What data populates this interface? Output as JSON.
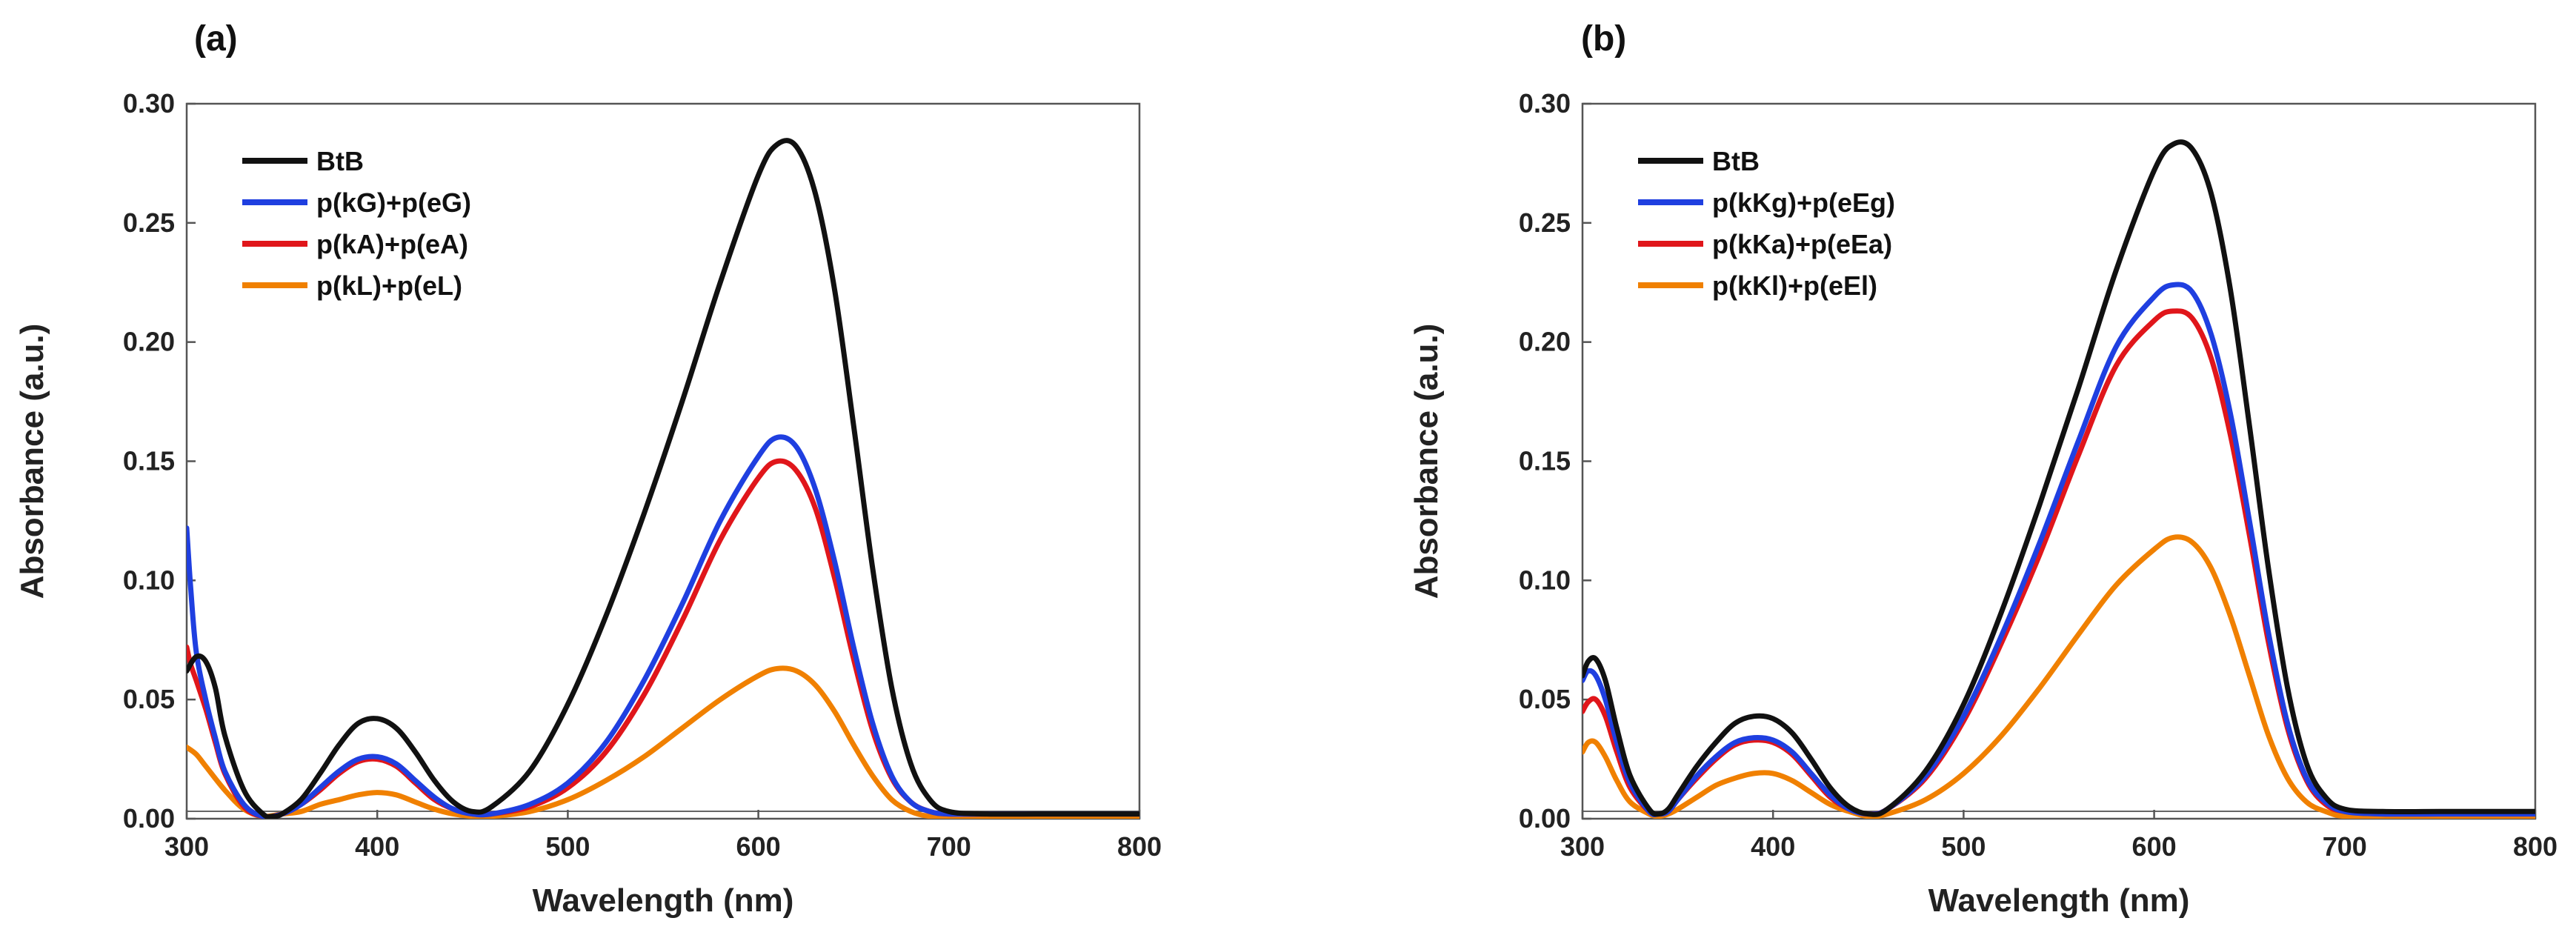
{
  "chart_data": [
    {
      "type": "line",
      "panel_label": "(a)",
      "xlabel": "Wavelength (nm)",
      "ylabel": "Absorbance (a.u.)",
      "xlim": [
        300,
        800
      ],
      "ylim": [
        0,
        0.3
      ],
      "x_ticks": [
        300,
        400,
        500,
        600,
        700,
        800
      ],
      "y_ticks": [
        "0.00",
        "0.05",
        "0.10",
        "0.15",
        "0.20",
        "0.25",
        "0.30"
      ],
      "grid": false,
      "legend_position": "top-left",
      "series": [
        {
          "name": "BtB",
          "color": "#111111",
          "x": [
            300,
            305,
            310,
            315,
            320,
            330,
            340,
            345,
            350,
            360,
            370,
            380,
            390,
            400,
            410,
            420,
            430,
            440,
            450,
            460,
            480,
            500,
            520,
            540,
            560,
            580,
            600,
            610,
            620,
            630,
            640,
            650,
            660,
            670,
            680,
            690,
            700,
            720,
            750,
            800
          ],
          "values": [
            0.062,
            0.068,
            0.066,
            0.055,
            0.035,
            0.012,
            0.002,
            0.001,
            0.002,
            0.008,
            0.019,
            0.031,
            0.04,
            0.042,
            0.038,
            0.028,
            0.016,
            0.007,
            0.003,
            0.005,
            0.02,
            0.048,
            0.085,
            0.128,
            0.175,
            0.225,
            0.27,
            0.283,
            0.282,
            0.262,
            0.222,
            0.165,
            0.105,
            0.055,
            0.023,
            0.008,
            0.003,
            0.002,
            0.002,
            0.002
          ]
        },
        {
          "name": "p(kG)+p(eG)",
          "color": "#1f3fe0",
          "x": [
            300,
            302,
            305,
            310,
            315,
            320,
            330,
            340,
            350,
            360,
            370,
            380,
            390,
            400,
            410,
            420,
            430,
            440,
            450,
            460,
            480,
            500,
            520,
            540,
            560,
            580,
            600,
            610,
            620,
            630,
            640,
            650,
            660,
            670,
            680,
            690,
            700,
            720,
            750,
            800
          ],
          "values": [
            0.122,
            0.098,
            0.07,
            0.05,
            0.034,
            0.02,
            0.006,
            0.001,
            0.002,
            0.006,
            0.013,
            0.02,
            0.025,
            0.026,
            0.023,
            0.016,
            0.009,
            0.004,
            0.002,
            0.002,
            0.006,
            0.015,
            0.032,
            0.058,
            0.09,
            0.125,
            0.152,
            0.16,
            0.156,
            0.138,
            0.108,
            0.072,
            0.04,
            0.018,
            0.007,
            0.003,
            0.002,
            0.002,
            0.002,
            0.002
          ]
        },
        {
          "name": "p(kA)+p(eA)",
          "color": "#e0161b",
          "x": [
            300,
            302,
            305,
            310,
            315,
            320,
            330,
            340,
            350,
            360,
            370,
            380,
            390,
            400,
            410,
            420,
            430,
            440,
            450,
            460,
            480,
            500,
            520,
            540,
            560,
            580,
            600,
            610,
            620,
            630,
            640,
            650,
            660,
            670,
            680,
            690,
            700,
            720,
            750,
            800
          ],
          "values": [
            0.072,
            0.065,
            0.058,
            0.046,
            0.032,
            0.019,
            0.005,
            0.001,
            0.002,
            0.006,
            0.012,
            0.019,
            0.024,
            0.025,
            0.022,
            0.015,
            0.008,
            0.004,
            0.002,
            0.002,
            0.005,
            0.013,
            0.028,
            0.052,
            0.083,
            0.117,
            0.143,
            0.15,
            0.146,
            0.13,
            0.101,
            0.067,
            0.037,
            0.017,
            0.007,
            0.003,
            0.002,
            0.002,
            0.002,
            0.002
          ]
        },
        {
          "name": "p(kL)+p(eL)",
          "color": "#f08000",
          "x": [
            300,
            305,
            310,
            320,
            330,
            340,
            350,
            360,
            370,
            380,
            390,
            400,
            410,
            420,
            430,
            440,
            450,
            460,
            480,
            500,
            520,
            540,
            560,
            580,
            600,
            610,
            620,
            630,
            640,
            650,
            660,
            670,
            680,
            690,
            700,
            720,
            750,
            800
          ],
          "values": [
            0.03,
            0.027,
            0.022,
            0.012,
            0.004,
            0.001,
            0.002,
            0.003,
            0.006,
            0.008,
            0.01,
            0.011,
            0.01,
            0.007,
            0.004,
            0.002,
            0.001,
            0.001,
            0.003,
            0.008,
            0.016,
            0.026,
            0.038,
            0.05,
            0.06,
            0.063,
            0.062,
            0.056,
            0.045,
            0.031,
            0.018,
            0.008,
            0.003,
            0.001,
            0.001,
            0.001,
            0.001,
            0.001
          ]
        }
      ]
    },
    {
      "type": "line",
      "panel_label": "(b)",
      "xlabel": "Wavelength (nm)",
      "ylabel": "Absorbance (a.u.)",
      "xlim": [
        300,
        800
      ],
      "ylim": [
        0,
        0.3
      ],
      "x_ticks": [
        300,
        400,
        500,
        600,
        700,
        800
      ],
      "y_ticks": [
        "0.00",
        "0.05",
        "0.10",
        "0.15",
        "0.20",
        "0.25",
        "0.30"
      ],
      "grid": false,
      "legend_position": "top-left",
      "series": [
        {
          "name": "BtB",
          "color": "#111111",
          "x": [
            300,
            303,
            307,
            312,
            318,
            325,
            335,
            340,
            345,
            350,
            360,
            370,
            380,
            390,
            400,
            410,
            420,
            430,
            440,
            450,
            460,
            480,
            500,
            520,
            540,
            560,
            580,
            600,
            610,
            620,
            630,
            640,
            650,
            660,
            670,
            680,
            690,
            700,
            720,
            750,
            800
          ],
          "values": [
            0.06,
            0.066,
            0.067,
            0.058,
            0.038,
            0.018,
            0.004,
            0.002,
            0.004,
            0.01,
            0.022,
            0.032,
            0.04,
            0.043,
            0.042,
            0.036,
            0.025,
            0.013,
            0.005,
            0.002,
            0.004,
            0.02,
            0.048,
            0.087,
            0.132,
            0.18,
            0.23,
            0.272,
            0.283,
            0.281,
            0.262,
            0.222,
            0.165,
            0.105,
            0.055,
            0.023,
            0.009,
            0.004,
            0.003,
            0.003,
            0.003
          ]
        },
        {
          "name": "p(kKg)+p(eEg)",
          "color": "#1f3fe0",
          "x": [
            300,
            303,
            307,
            312,
            318,
            325,
            335,
            340,
            345,
            350,
            360,
            370,
            380,
            390,
            400,
            410,
            420,
            430,
            440,
            450,
            460,
            480,
            500,
            520,
            540,
            560,
            580,
            600,
            610,
            620,
            630,
            640,
            650,
            660,
            670,
            680,
            690,
            700,
            720,
            750,
            800
          ],
          "values": [
            0.058,
            0.062,
            0.06,
            0.05,
            0.032,
            0.015,
            0.003,
            0.002,
            0.003,
            0.008,
            0.018,
            0.026,
            0.032,
            0.034,
            0.033,
            0.028,
            0.019,
            0.01,
            0.004,
            0.002,
            0.004,
            0.018,
            0.043,
            0.077,
            0.116,
            0.158,
            0.198,
            0.219,
            0.224,
            0.221,
            0.203,
            0.17,
            0.125,
            0.078,
            0.04,
            0.017,
            0.007,
            0.003,
            0.002,
            0.002,
            0.002
          ]
        },
        {
          "name": "p(kKa)+p(eEa)",
          "color": "#e0161b",
          "x": [
            300,
            303,
            307,
            312,
            318,
            325,
            335,
            340,
            345,
            350,
            360,
            370,
            380,
            390,
            400,
            410,
            420,
            430,
            440,
            450,
            460,
            480,
            500,
            520,
            540,
            560,
            580,
            600,
            610,
            620,
            630,
            640,
            650,
            660,
            670,
            680,
            690,
            700,
            720,
            750,
            800
          ],
          "values": [
            0.045,
            0.049,
            0.05,
            0.043,
            0.028,
            0.013,
            0.003,
            0.002,
            0.003,
            0.008,
            0.017,
            0.025,
            0.031,
            0.033,
            0.032,
            0.027,
            0.018,
            0.009,
            0.004,
            0.002,
            0.004,
            0.017,
            0.041,
            0.074,
            0.111,
            0.152,
            0.19,
            0.209,
            0.213,
            0.21,
            0.193,
            0.161,
            0.119,
            0.074,
            0.038,
            0.016,
            0.006,
            0.003,
            0.002,
            0.002,
            0.002
          ]
        },
        {
          "name": "p(kKl)+p(eEl)",
          "color": "#f08000",
          "x": [
            300,
            303,
            307,
            312,
            318,
            325,
            335,
            340,
            345,
            350,
            360,
            370,
            380,
            390,
            400,
            410,
            420,
            430,
            440,
            450,
            460,
            480,
            500,
            520,
            540,
            560,
            580,
            600,
            610,
            620,
            630,
            640,
            650,
            660,
            670,
            680,
            690,
            700,
            720,
            750,
            800
          ],
          "values": [
            0.028,
            0.032,
            0.032,
            0.026,
            0.016,
            0.007,
            0.002,
            0.001,
            0.002,
            0.004,
            0.009,
            0.014,
            0.017,
            0.019,
            0.019,
            0.016,
            0.011,
            0.006,
            0.003,
            0.001,
            0.002,
            0.008,
            0.019,
            0.035,
            0.055,
            0.077,
            0.098,
            0.113,
            0.118,
            0.116,
            0.105,
            0.085,
            0.06,
            0.035,
            0.017,
            0.007,
            0.003,
            0.001,
            0.001,
            0.001,
            0.001
          ]
        }
      ]
    }
  ]
}
